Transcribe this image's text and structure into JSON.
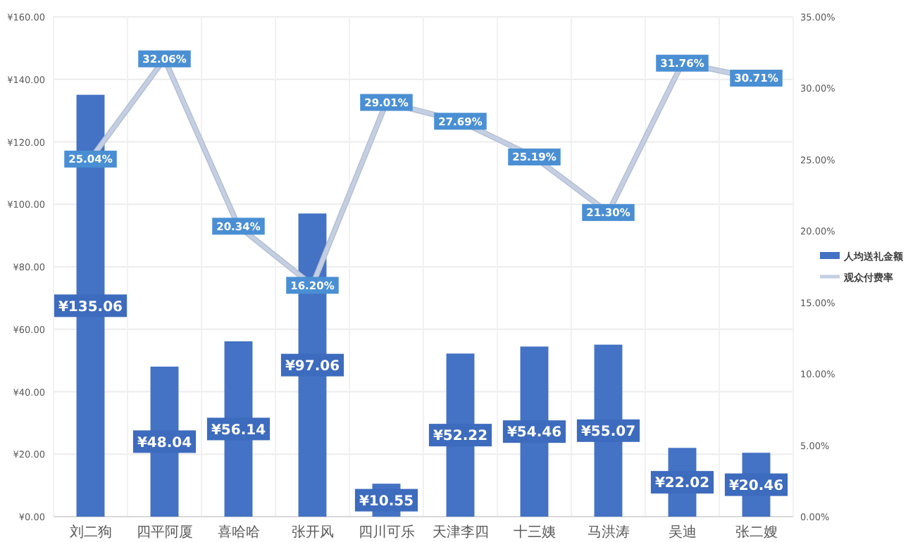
{
  "chart_data": {
    "type": "bar",
    "categories": [
      "刘二狗",
      "四平阿厦",
      "喜哈哈",
      "张开风",
      "四川可乐",
      "天津李四",
      "十三姨",
      "马洪涛",
      "吴迪",
      "张二嫂"
    ],
    "series": [
      {
        "name": "人均送礼金额",
        "color": "#4472c4",
        "values": [
          135.06,
          48.04,
          56.14,
          97.06,
          10.55,
          52.22,
          54.46,
          55.07,
          22.02,
          20.46
        ],
        "value_labels": [
          "¥135.06",
          "¥48.04",
          "¥56.14",
          "¥97.06",
          "¥10.55",
          "¥52.22",
          "¥54.46",
          "¥55.07",
          "¥22.02",
          "¥20.46"
        ]
      },
      {
        "name": "观众付费率",
        "type": "line",
        "marker": "square",
        "axis": "y2",
        "color": "#c5cfe2",
        "values": [
          25.04,
          32.06,
          20.34,
          16.2,
          29.01,
          27.69,
          25.19,
          21.3,
          31.76,
          30.71
        ],
        "value_labels": [
          "25.04%",
          "32.06%",
          "20.34%",
          "16.20%",
          "29.01%",
          "27.69%",
          "25.19%",
          "21.30%",
          "31.76%",
          "30.71%"
        ]
      }
    ],
    "ylim": [
      0,
      160
    ],
    "yticks": [
      {
        "value": 0,
        "label": "¥0.00"
      },
      {
        "value": 20,
        "label": "¥20.00"
      },
      {
        "value": 40,
        "label": "¥40.00"
      },
      {
        "value": 60,
        "label": "¥60.00"
      },
      {
        "value": 80,
        "label": "¥80.00"
      },
      {
        "value": 100,
        "label": "¥100.00"
      },
      {
        "value": 120,
        "label": "¥120.00"
      },
      {
        "value": 140,
        "label": "¥140.00"
      },
      {
        "value": 160,
        "label": "¥160.00"
      }
    ],
    "y2lim": [
      0,
      35
    ],
    "y2ticks": [
      {
        "value": 0,
        "label": "0.00%"
      },
      {
        "value": 5,
        "label": "5.00%"
      },
      {
        "value": 10,
        "label": "10.00%"
      },
      {
        "value": 15,
        "label": "15.00%"
      },
      {
        "value": 20,
        "label": "20.00%"
      },
      {
        "value": 25,
        "label": "25.00%"
      },
      {
        "value": 30,
        "label": "30.00%"
      },
      {
        "value": 35,
        "label": "35.00%"
      }
    ],
    "grid": true,
    "legend": "right"
  }
}
